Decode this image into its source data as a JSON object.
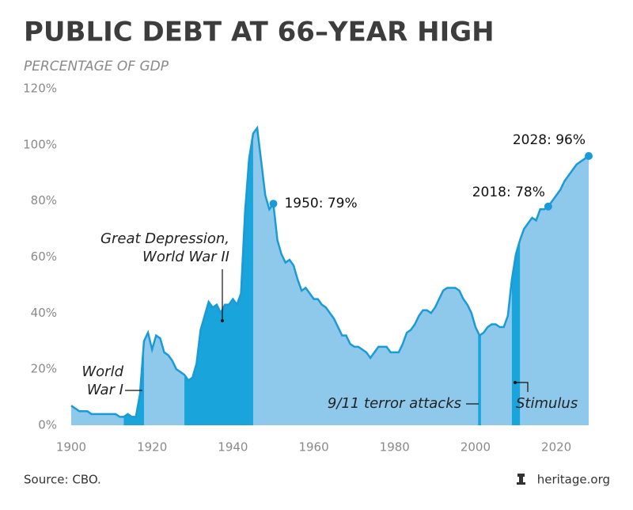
{
  "chart_data": {
    "type": "area",
    "title": "PUBLIC DEBT AT 66–YEAR HIGH",
    "subtitle": "PERCENTAGE OF GDP",
    "source": "Source: CBO.",
    "credit": "heritage.org",
    "color": "#8ec9ec",
    "line_color": "#1a9bd7",
    "highlight_color": "#19a5db",
    "x": [
      1900,
      1901,
      1902,
      1903,
      1904,
      1905,
      1906,
      1907,
      1908,
      1909,
      1910,
      1911,
      1912,
      1913,
      1914,
      1915,
      1916,
      1917,
      1918,
      1919,
      1920,
      1921,
      1922,
      1923,
      1924,
      1925,
      1926,
      1927,
      1928,
      1929,
      1930,
      1931,
      1932,
      1933,
      1934,
      1935,
      1936,
      1937,
      1938,
      1939,
      1940,
      1941,
      1942,
      1943,
      1944,
      1945,
      1946,
      1947,
      1948,
      1949,
      1950,
      1951,
      1952,
      1953,
      1954,
      1955,
      1956,
      1957,
      1958,
      1959,
      1960,
      1961,
      1962,
      1963,
      1964,
      1965,
      1966,
      1967,
      1968,
      1969,
      1970,
      1971,
      1972,
      1973,
      1974,
      1975,
      1976,
      1977,
      1978,
      1979,
      1980,
      1981,
      1982,
      1983,
      1984,
      1985,
      1986,
      1987,
      1988,
      1989,
      1990,
      1991,
      1992,
      1993,
      1994,
      1995,
      1996,
      1997,
      1998,
      1999,
      2000,
      2001,
      2002,
      2003,
      2004,
      2005,
      2006,
      2007,
      2008,
      2009,
      2010,
      2011,
      2012,
      2013,
      2014,
      2015,
      2016,
      2017,
      2018,
      2019,
      2020,
      2021,
      2022,
      2023,
      2024,
      2025,
      2026,
      2027,
      2028
    ],
    "values": [
      7,
      6,
      5,
      5,
      5,
      4,
      4,
      4,
      4,
      4,
      4,
      4,
      3,
      3,
      4,
      3,
      3,
      11,
      30,
      33,
      27,
      32,
      31,
      26,
      25,
      23,
      20,
      19,
      18,
      16,
      17,
      22,
      34,
      39,
      44,
      42,
      43,
      40,
      43,
      43,
      45,
      43,
      47,
      76,
      95,
      104,
      106,
      94,
      82,
      77,
      79,
      66,
      61,
      58,
      59,
      57,
      52,
      48,
      49,
      47,
      45,
      45,
      43,
      42,
      40,
      38,
      35,
      32,
      32,
      29,
      28,
      28,
      27,
      26,
      24,
      26,
      28,
      28,
      28,
      26,
      26,
      26,
      29,
      33,
      34,
      36,
      39,
      41,
      41,
      40,
      42,
      45,
      48,
      49,
      49,
      49,
      48,
      45,
      43,
      40,
      35,
      32,
      33,
      35,
      36,
      36,
      35,
      35,
      39,
      52,
      61,
      66,
      70,
      72,
      74,
      73,
      77,
      77,
      78,
      80,
      82,
      84,
      87,
      89,
      91,
      93,
      94,
      95,
      96
    ],
    "xlim": [
      1900,
      2028
    ],
    "xticks": [
      1900,
      1920,
      1940,
      1960,
      1980,
      2000,
      2020
    ],
    "ylim": [
      0,
      120
    ],
    "yticks": [
      {
        "value": 0,
        "label": "0%"
      },
      {
        "value": 20,
        "label": "20%"
      },
      {
        "value": 40,
        "label": "40%"
      },
      {
        "value": 60,
        "label": "60%"
      },
      {
        "value": 80,
        "label": "80%"
      },
      {
        "value": 100,
        "label": "100%"
      },
      {
        "value": 120,
        "label": "120%"
      }
    ],
    "highlights": [
      {
        "start": 1913,
        "end": 1918
      },
      {
        "start": 1928,
        "end": 1945
      },
      {
        "start": 2001,
        "end": 2001
      },
      {
        "start": 2009,
        "end": 2011
      }
    ],
    "annotations": [
      {
        "lines": [
          "World",
          "War I"
        ]
      },
      {
        "lines": [
          "Great Depression,",
          "World War II"
        ]
      },
      {
        "lines": [
          "9/11 terror attacks"
        ]
      },
      {
        "lines": [
          "Stimulus"
        ]
      }
    ],
    "callouts": [
      {
        "label": "1950: 79%",
        "x": 1950
      },
      {
        "label": "2018: 78%",
        "x": 2018
      },
      {
        "label": "2028: 96%",
        "x": 2028
      }
    ]
  }
}
